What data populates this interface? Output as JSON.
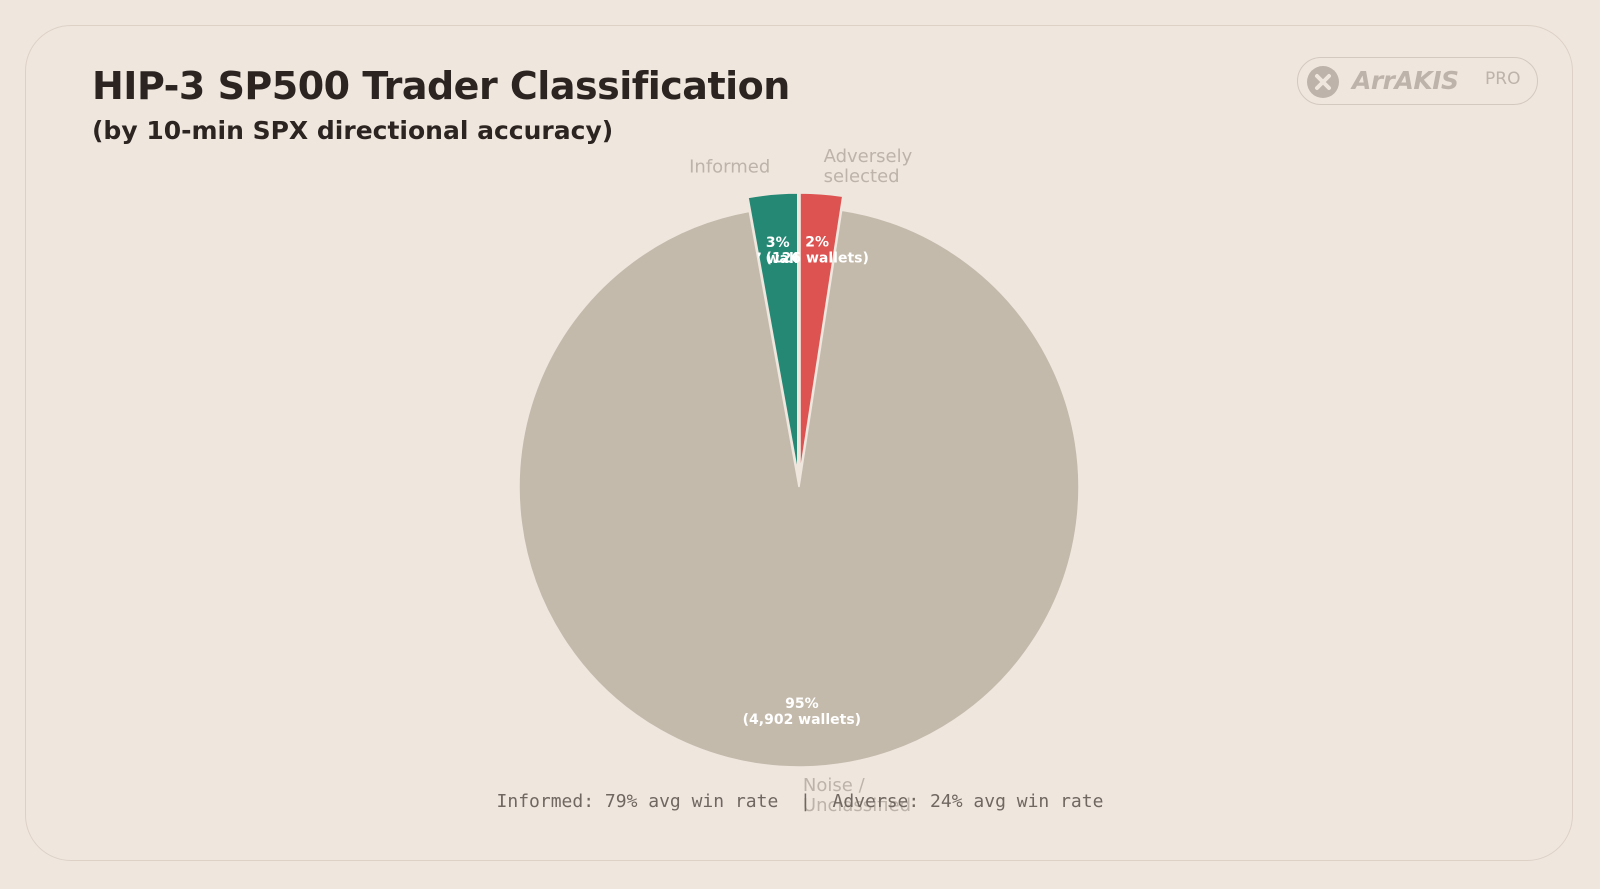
{
  "header": {
    "title": "HIP-3 SP500 Trader Classification",
    "subtitle": "(by 10-min SPX directional accuracy)"
  },
  "logo": {
    "text": "ArrAKIS",
    "badge": "PRO",
    "icon": "close-x-icon"
  },
  "footer": {
    "informed_note": "Informed: 79% avg win rate",
    "separator": "|",
    "adverse_note": "Adverse: 24% avg win rate"
  },
  "chart_data": {
    "type": "pie",
    "start_angle_deg": 90,
    "direction": "counterclockwise",
    "slices": [
      {
        "label": "Informed",
        "pct_label": "3%",
        "count_label": "(147 wallets)",
        "value": 147,
        "color": "#258874",
        "explode": true
      },
      {
        "label": "Noise / Unclassified",
        "label_lines": [
          "Noise /",
          "Unclassified"
        ],
        "pct_label": "95%",
        "count_label": "(4,902 wallets)",
        "value": 4902,
        "color": "#c4baab",
        "explode": false
      },
      {
        "label": "Adversely selected",
        "label_lines": [
          "Adversely",
          "selected"
        ],
        "pct_label": "2%",
        "count_label": "(126 wallets)",
        "value": 126,
        "color": "#dc5351",
        "explode": true
      }
    ],
    "outer_label_color": "#bdb3aa",
    "inner_label_color": "#ffffff"
  }
}
